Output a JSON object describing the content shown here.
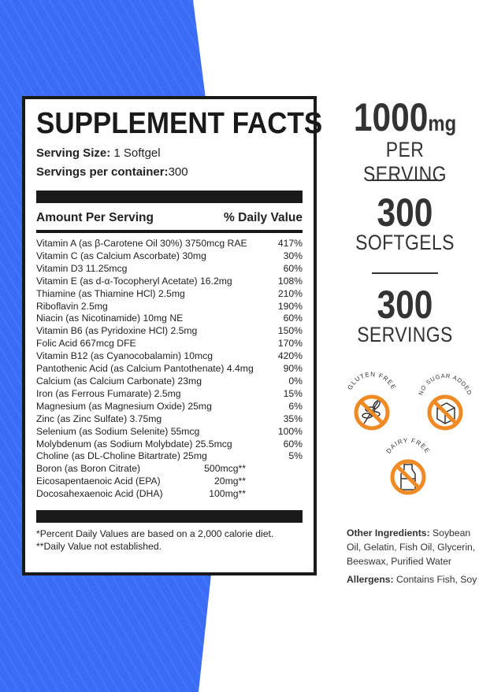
{
  "label": {
    "title": "SUPPLEMENT FACTS",
    "serving_size_label": "Serving Size:",
    "serving_size_value": "1 Softgel",
    "servings_label": "Servings per container:",
    "servings_value": "300",
    "amount_header": "Amount Per Serving",
    "dv_header": "% Daily Value",
    "rows": [
      {
        "name": "Vitamin A (as β-Carotene Oil 30%) 3750mcg RAE",
        "dv": "417%"
      },
      {
        "name": "Vitamin C (as Calcium Ascorbate)  30mg",
        "dv": "30%"
      },
      {
        "name": "Vitamin D3 11.25mcg",
        "dv": "60%"
      },
      {
        "name": "Vitamin E (as d-α-Tocopheryl Acetate)  16.2mg",
        "dv": "108%"
      },
      {
        "name": "Thiamine (as Thiamine HCl)  2.5mg",
        "dv": "210%"
      },
      {
        "name": "Riboflavin  2.5mg",
        "dv": "190%"
      },
      {
        "name": "Niacin (as Nicotinamide)  10mg NE",
        "dv": "60%"
      },
      {
        "name": "Vitamin B6 (as Pyridoxine HCl)  2.5mg",
        "dv": "150%"
      },
      {
        "name": "Folic Acid  667mcg DFE",
        "dv": "170%"
      },
      {
        "name": "Vitamin B12 (as Cyanocobalamin)  10mcg",
        "dv": "420%"
      },
      {
        "name": "Pantothenic Acid (as Calcium Pantothenate)  4.4mg",
        "dv": "90%"
      },
      {
        "name": "Calcium (as Calcium Carbonate)  23mg",
        "dv": "0%"
      },
      {
        "name": "Iron (as Ferrous Fumarate)  2.5mg",
        "dv": "15%"
      },
      {
        "name": "Magnesium (as Magnesium Oxide)  25mg",
        "dv": "6%"
      },
      {
        "name": "Zinc (as Zinc Sulfate)  3.75mg",
        "dv": "35%"
      },
      {
        "name": "Selenium (as Sodium Selenite)  55mcg",
        "dv": "100%"
      },
      {
        "name": "Molybdenum (as Sodium Molybdate)  25.5mcg",
        "dv": "60%"
      },
      {
        "name": "Choline (as DL-Choline Bitartrate)  25mg",
        "dv": "5%"
      }
    ],
    "extra_rows": [
      {
        "name": "Boron (as Boron Citrate)",
        "amount": "500mcg**"
      },
      {
        "name": "Eicosapentaenoic Acid (EPA)",
        "amount": "20mg**"
      },
      {
        "name": "Docosahexaenoic Acid (DHA)",
        "amount": "100mg**"
      }
    ],
    "footnote1": "*Percent Daily Values are based on a 2,000 calorie diet.",
    "footnote2": "**Daily Value not established."
  },
  "stats": {
    "dose_value": "1000",
    "dose_unit": "mg",
    "dose_caption": "PER SERVING",
    "softgels_value": "300",
    "softgels_caption": "SOFTGELS",
    "servings_value": "300",
    "servings_caption": "SERVINGS"
  },
  "badges": {
    "gluten": "GLUTEN FREE",
    "sugar": "NO SUGAR ADDED",
    "dairy": "DAIRY FREE",
    "color": "#f08a24"
  },
  "ingredients": {
    "other_label": "Other Ingredients:",
    "other_value": "Soybean Oil, Gelatin, Fish Oil, Glycerin, Beeswax, Purified Water",
    "allergens_label": "Allergens:",
    "allergens_value": "Contains Fish, Soy"
  },
  "colors": {
    "background_blue": "#3b6cf6"
  }
}
